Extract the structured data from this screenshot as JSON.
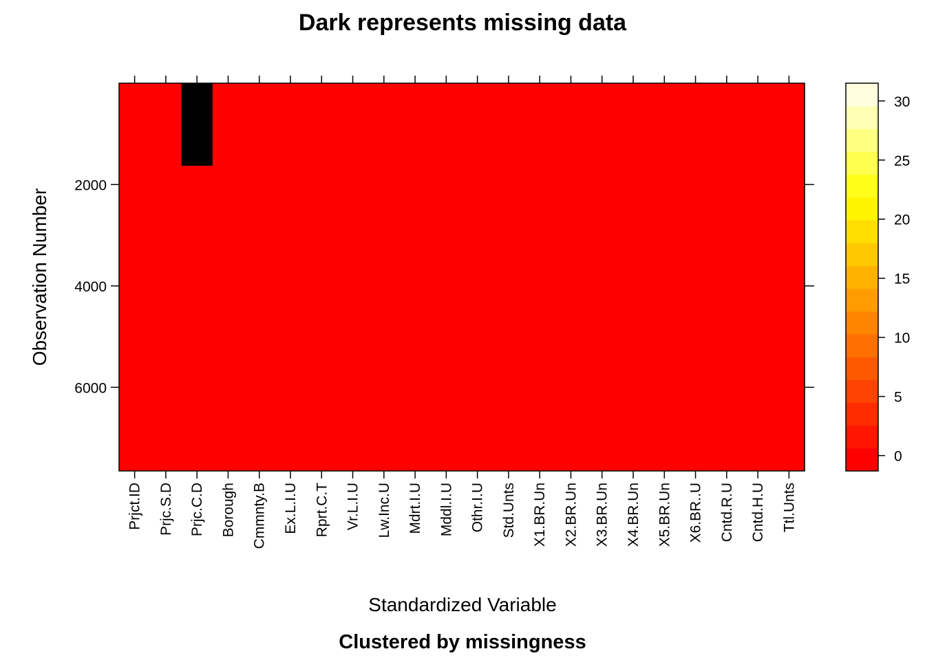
{
  "chart_data": {
    "type": "heatmap",
    "title": "Dark represents missing data",
    "subtitle": "Clustered by missingness",
    "xlabel": "Standardized Variable",
    "ylabel": "Observation Number",
    "categories": [
      "Prjct.ID",
      "Prjc.S.D",
      "Prjc.C.D",
      "Borough",
      "Cmmnty.B",
      "Ex.L.I.U",
      "Rprt.C.T",
      "Vr.L.I.U",
      "Lw.Inc.U",
      "Mdrt.I.U",
      "Mddl.I.U",
      "Othr.I.U",
      "Std.Unts",
      "X1.BR.Un",
      "X2.BR.Un",
      "X3.BR.Un",
      "X4.BR.Un",
      "X5.BR.Un",
      "X6.BR..U",
      "Cntd.R.U",
      "Cntd.H.U",
      "Ttl.Unts"
    ],
    "y_ticks": [
      "2000",
      "4000",
      "6000"
    ],
    "y_tick_values": [
      2000,
      4000,
      6000
    ],
    "ylim": [
      7650,
      1
    ],
    "y_reversed": true,
    "missing_blocks": [
      {
        "variable": "Prjc.C.D",
        "from": 1,
        "to": 1630
      }
    ],
    "colorbar": {
      "ticks": [
        "0",
        "5",
        "10",
        "15",
        "20",
        "25",
        "30"
      ],
      "tick_values": [
        0,
        5,
        10,
        15,
        20,
        25,
        30
      ],
      "range": [
        -1.3,
        31.5
      ],
      "missing_color": "#000000",
      "base_color": "#ff0000",
      "colors": [
        "#ff0000",
        "#ff1600",
        "#ff2c00",
        "#ff4300",
        "#ff5900",
        "#ff6f00",
        "#ff8500",
        "#ff9c00",
        "#ffb200",
        "#ffc800",
        "#ffde00",
        "#fff500",
        "#ffff1a",
        "#ffff4d",
        "#ffff80",
        "#ffffb3",
        "#ffffe0"
      ]
    }
  }
}
